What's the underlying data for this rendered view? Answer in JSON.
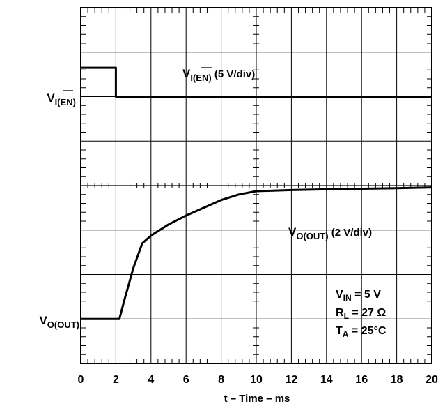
{
  "chart_data": {
    "type": "line",
    "xlabel": "t – Time – ms",
    "xlim": [
      0,
      20
    ],
    "x_ticks": [
      "0",
      "2",
      "4",
      "6",
      "8",
      "10",
      "12",
      "14",
      "16",
      "18",
      "20"
    ],
    "grid": true,
    "vertical_divisions": 8,
    "channels": [
      {
        "ref_label": {
          "main": "V",
          "sub": "I(EN)",
          "overline": "EN"
        },
        "scale_label": {
          "main": "V",
          "sub": "I(EN)",
          "overline": "EN",
          "suffix": " (5 V/div)"
        },
        "unit": "V",
        "volts_per_div": 5,
        "reference_div": 6,
        "x": [
          0,
          2.0,
          2.0,
          20
        ],
        "y": [
          3.25,
          3.25,
          0,
          0
        ]
      },
      {
        "ref_label": {
          "main": "V",
          "sub": "O(OUT)"
        },
        "scale_label": {
          "main": "V",
          "sub": "O(OUT)",
          "suffix": " (2 V/div)"
        },
        "unit": "V",
        "volts_per_div": 2,
        "reference_div": 1,
        "x": [
          0,
          2.2,
          2.5,
          3.0,
          3.5,
          4.0,
          5.0,
          6.0,
          7.0,
          8.0,
          9.0,
          10.0,
          12.0,
          14.0,
          16.0,
          18.0,
          20.0
        ],
        "y": [
          0,
          0,
          0.9,
          2.3,
          3.4,
          3.75,
          4.25,
          4.65,
          5.0,
          5.35,
          5.6,
          5.75,
          5.8,
          5.83,
          5.86,
          5.88,
          5.92
        ]
      }
    ],
    "annotations": [
      {
        "main": "V",
        "sub": "IN",
        "rest": " = 5 V"
      },
      {
        "main": "R",
        "sub": "L",
        "rest": " = 27 Ω"
      },
      {
        "main": "T",
        "sub": "A",
        "rest": " = 25°C"
      }
    ]
  }
}
